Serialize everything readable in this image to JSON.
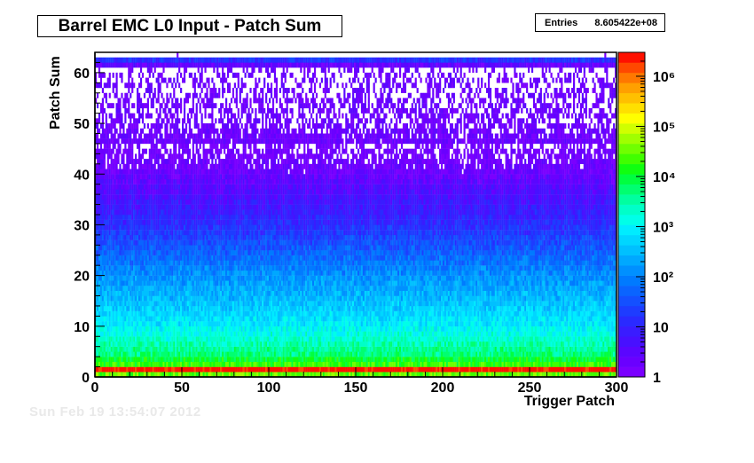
{
  "chart_data": {
    "type": "heatmap",
    "title": "Barrel EMC L0 Input - Patch Sum",
    "xlabel": "Trigger Patch",
    "ylabel": "Patch Sum",
    "xlim": [
      0,
      300
    ],
    "ylim": [
      0,
      64
    ],
    "x_ticks": [
      "0",
      "50",
      "100",
      "150",
      "200",
      "250",
      "300"
    ],
    "y_ticks": [
      "0",
      "10",
      "20",
      "30",
      "40",
      "50",
      "60"
    ],
    "z_scale": "log",
    "z_range": [
      1,
      3000000
    ],
    "z_ticks": [
      "1",
      "10",
      "10²",
      "10³",
      "10⁴",
      "10⁵",
      "10⁶"
    ],
    "stats": {
      "label": "Entries",
      "value": "8.605422e+08"
    },
    "profile": [
      {
        "patch_sum": 0,
        "count": 30000
      },
      {
        "patch_sum": 1,
        "count": 3000000
      },
      {
        "patch_sum": 2,
        "count": 20000
      },
      {
        "patch_sum": 4,
        "count": 5000
      },
      {
        "patch_sum": 10,
        "count": 800
      },
      {
        "patch_sum": 20,
        "count": 120
      },
      {
        "patch_sum": 30,
        "count": 12
      },
      {
        "patch_sum": 40,
        "count": 2
      },
      {
        "patch_sum": 50,
        "count": 0.6
      },
      {
        "patch_sum": 60,
        "count": 0.35
      },
      {
        "patch_sum": 62,
        "count": 15
      },
      {
        "patch_sum": 63,
        "count": 0
      }
    ]
  },
  "timestamp": "Sun Feb 19 13:54:07 2012"
}
